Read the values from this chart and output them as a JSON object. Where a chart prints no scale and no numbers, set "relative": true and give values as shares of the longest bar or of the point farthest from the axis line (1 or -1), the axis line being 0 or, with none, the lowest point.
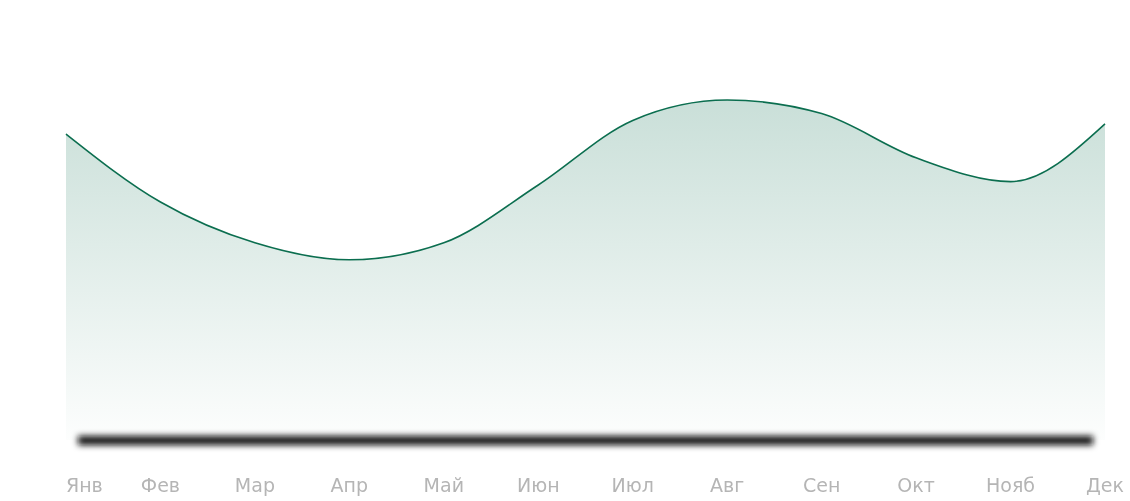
{
  "chart_data": {
    "type": "area",
    "relative": true,
    "categories": [
      "Янв",
      "Фев",
      "Мар",
      "Апр",
      "Май",
      "Июн",
      "Июл",
      "Авг",
      "Сен",
      "Окт",
      "Нояб",
      "Дек"
    ],
    "series": [
      {
        "color": "#0b6e4f",
        "values": [
          0.9,
          0.7,
          0.58,
          0.53,
          0.58,
          0.75,
          0.94,
          1,
          0.96,
          0.83,
          0.76,
          0.93
        ]
      }
    ],
    "grid": false
  }
}
